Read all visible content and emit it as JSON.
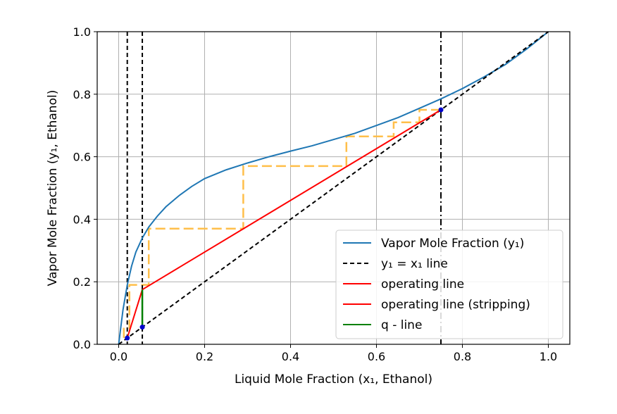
{
  "chart_data": {
    "type": "line",
    "title": "",
    "xlabel": "Liquid Mole Fraction (x₁, Ethanol)",
    "ylabel": "Vapor Mole Fraction (y₁, Ethanol)",
    "xlim": [
      -0.05,
      1.05
    ],
    "ylim": [
      0.0,
      1.0
    ],
    "xticks": [
      0.0,
      0.2,
      0.4,
      0.6,
      0.8,
      1.0
    ],
    "yticks": [
      0.0,
      0.2,
      0.4,
      0.6,
      0.8,
      1.0
    ],
    "xtick_labels": [
      "0.0",
      "0.2",
      "0.4",
      "0.6",
      "0.8",
      "1.0"
    ],
    "ytick_labels": [
      "0.0",
      "0.2",
      "0.4",
      "0.6",
      "0.8",
      "1.0"
    ],
    "grid": true,
    "legend_position": "lower-right",
    "colors": {
      "equilibrium": "#1f77b4",
      "diagonal": "#000000",
      "operating": "#ff0000",
      "q_line": "#008000",
      "steps": "#ffbf4a",
      "points": "#0000cc"
    },
    "series": [
      {
        "name": "Vapor Mole Fraction (y₁)",
        "style": "solid",
        "color": "#1f77b4",
        "x": [
          0.0,
          0.01,
          0.02,
          0.03,
          0.04,
          0.055,
          0.07,
          0.09,
          0.11,
          0.14,
          0.17,
          0.2,
          0.25,
          0.3,
          0.35,
          0.4,
          0.45,
          0.5,
          0.55,
          0.6,
          0.65,
          0.7,
          0.75,
          0.8,
          0.85,
          0.9,
          0.95,
          1.0
        ],
        "y": [
          0.0,
          0.11,
          0.19,
          0.25,
          0.295,
          0.34,
          0.375,
          0.41,
          0.44,
          0.475,
          0.505,
          0.53,
          0.558,
          0.58,
          0.6,
          0.618,
          0.635,
          0.655,
          0.675,
          0.7,
          0.725,
          0.755,
          0.785,
          0.818,
          0.855,
          0.895,
          0.945,
          1.0
        ]
      },
      {
        "name": "y₁ = x₁ line",
        "style": "dashed",
        "color": "#000000",
        "x": [
          0.0,
          1.0
        ],
        "y": [
          0.0,
          1.0
        ]
      },
      {
        "name": "operating line",
        "style": "solid",
        "color": "#ff0000",
        "x": [
          0.055,
          0.75
        ],
        "y": [
          0.175,
          0.75
        ]
      },
      {
        "name": "operating line (stripping)",
        "style": "solid",
        "color": "#ff0000",
        "x": [
          0.02,
          0.055
        ],
        "y": [
          0.02,
          0.175
        ]
      },
      {
        "name": "q - line",
        "style": "solid",
        "color": "#008000",
        "x": [
          0.055,
          0.055
        ],
        "y": [
          0.055,
          0.175
        ]
      }
    ],
    "vertical_lines": [
      {
        "x": 0.02,
        "style": "dashed",
        "color": "#000000"
      },
      {
        "x": 0.055,
        "style": "dashed",
        "color": "#000000"
      },
      {
        "x": 0.75,
        "style": "dashdot",
        "color": "#000000"
      }
    ],
    "stages": {
      "color": "#ffbf4a",
      "path_x": [
        0.75,
        0.7,
        0.7,
        0.64,
        0.64,
        0.53,
        0.53,
        0.29,
        0.29,
        0.07,
        0.07,
        0.025,
        0.025,
        0.012,
        0.012
      ],
      "path_y": [
        0.75,
        0.75,
        0.71,
        0.71,
        0.665,
        0.665,
        0.57,
        0.57,
        0.37,
        0.37,
        0.19,
        0.19,
        0.05,
        0.05,
        0.02
      ]
    },
    "points": [
      {
        "x": 0.75,
        "y": 0.75
      },
      {
        "x": 0.055,
        "y": 0.055
      },
      {
        "x": 0.02,
        "y": 0.02
      }
    ]
  }
}
